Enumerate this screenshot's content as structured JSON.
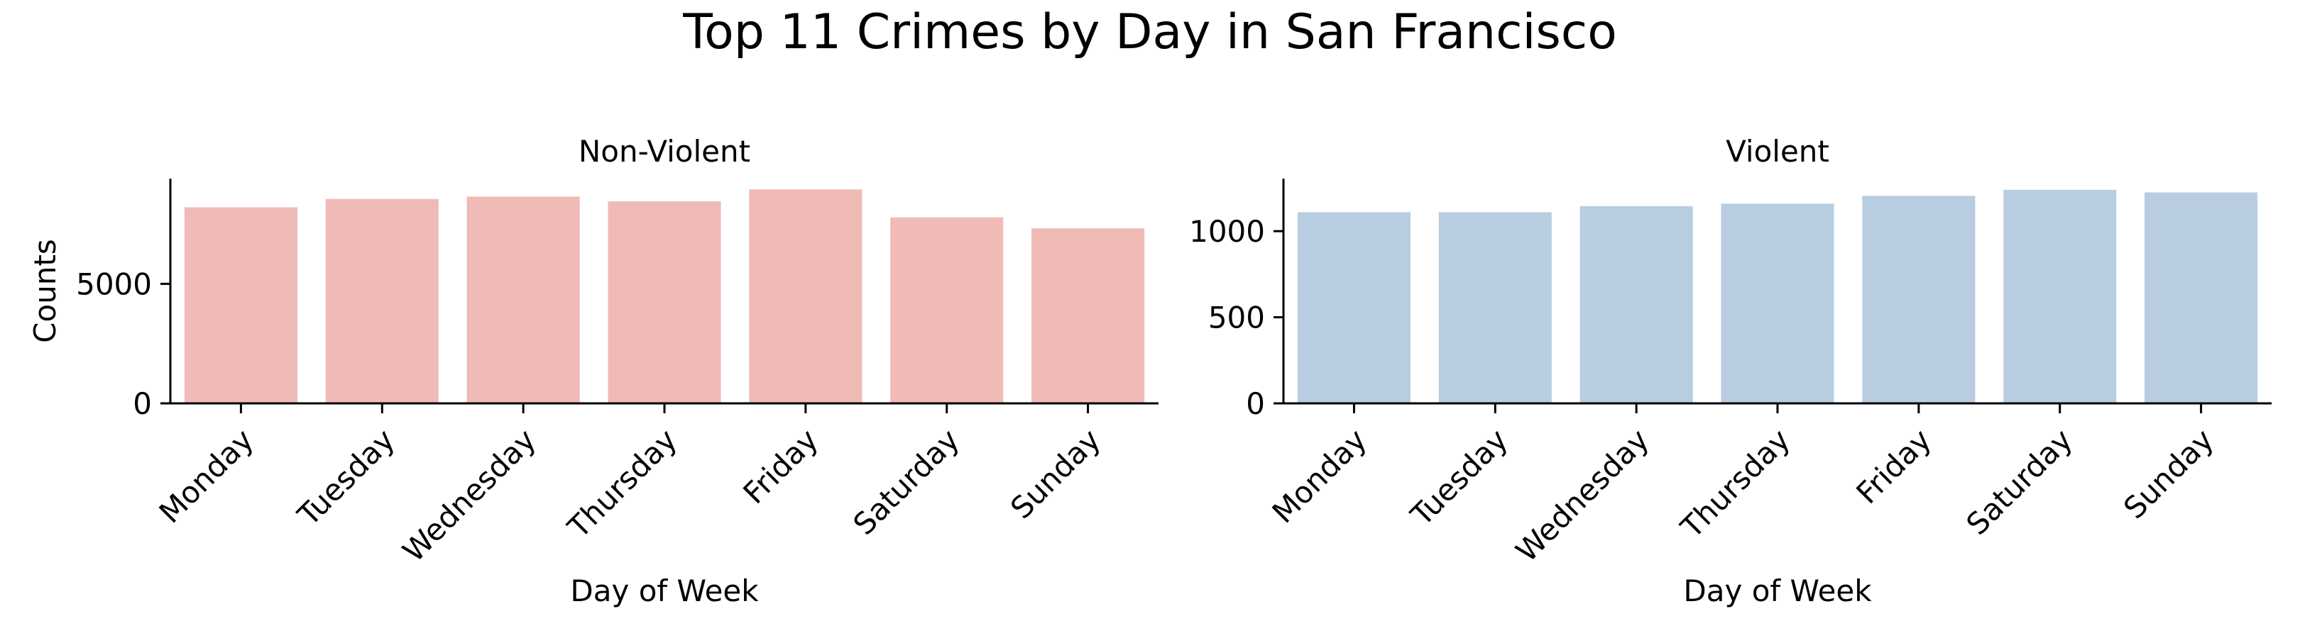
{
  "suptitle": "Top 11 Crimes by Day in San Francisco",
  "chart_data": [
    {
      "type": "bar",
      "title": "Non-Violent",
      "xlabel": "Day of Week",
      "ylabel": "Counts",
      "categories": [
        "Monday",
        "Tuesday",
        "Wednesday",
        "Thursday",
        "Friday",
        "Saturday",
        "Sunday"
      ],
      "values": [
        8200,
        8550,
        8650,
        8450,
        8950,
        7780,
        7320
      ],
      "ylim": [
        0,
        9400
      ],
      "yticks": [
        0,
        5000
      ],
      "color": "#f0bab7",
      "grid": false,
      "legend": "none"
    },
    {
      "type": "bar",
      "title": "Violent",
      "xlabel": "Day of Week",
      "ylabel": "",
      "categories": [
        "Monday",
        "Tuesday",
        "Wednesday",
        "Thursday",
        "Friday",
        "Saturday",
        "Sunday"
      ],
      "values": [
        1110,
        1110,
        1145,
        1160,
        1205,
        1240,
        1225
      ],
      "ylim": [
        0,
        1305
      ],
      "yticks": [
        0,
        500,
        1000
      ],
      "color": "#b9cde0",
      "grid": false,
      "legend": "none"
    }
  ]
}
